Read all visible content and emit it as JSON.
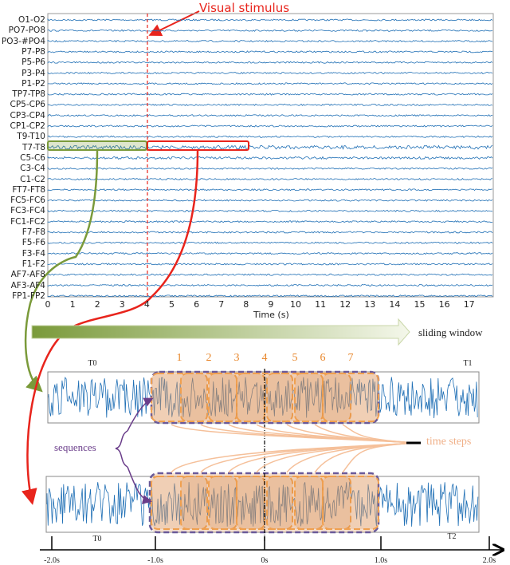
{
  "annotation": {
    "stimulus_label": "Visual stimulus",
    "stimulus_color": "#e8241c"
  },
  "eeg_plot": {
    "channels": [
      "O1-O2",
      "PO7-PO8",
      "PO3-#PO4",
      "P7-P8",
      "P5-P6",
      "P3-P4",
      "P1-P2",
      "TP7-TP8",
      "CP5-CP6",
      "CP3-CP4",
      "CP1-CP2",
      "T9-T10",
      "T7-T8",
      "C5-C6",
      "C3-C4",
      "C1-C2",
      "FT7-FT8",
      "FC5-FC6",
      "FC3-FC4",
      "FC1-FC2",
      "F7-F8",
      "F5-F6",
      "F3-F4",
      "F1-F2",
      "AF7-AF8",
      "AF3-AF4",
      "FP1-FP2"
    ],
    "xticks": [
      "0",
      "1",
      "2",
      "3",
      "4",
      "5",
      "6",
      "7",
      "8",
      "9",
      "10",
      "11",
      "12",
      "13",
      "14",
      "15",
      "16",
      "17"
    ],
    "xlabel": "Time (s)",
    "signal_color": "#1f6fb5"
  },
  "sliding_window": {
    "label": "sliding window"
  },
  "windows": {
    "top": {
      "left_label": "T0",
      "right_label": "T1",
      "step_numbers": [
        "1",
        "2",
        "3",
        "4",
        "5",
        "6",
        "7"
      ]
    },
    "bottom": {
      "right_label": "T2"
    }
  },
  "legend": {
    "sequences": "sequences",
    "time_steps": "time steps"
  },
  "timeline": {
    "segment_label": "T0",
    "ticks": [
      "-2.0s",
      "-1.0s",
      "0s",
      "1.0s",
      "2.0s"
    ]
  }
}
